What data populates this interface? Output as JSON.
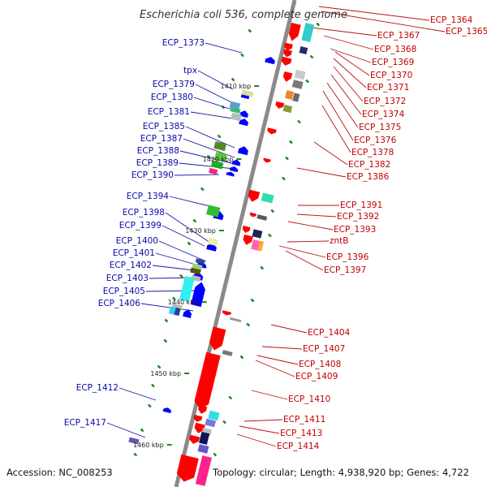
{
  "title": "Escherichia coli 536, complete genome",
  "accession": "Accession: NC_008253",
  "summary": "Topology: circular; Length: 4,938,920 bp; Genes: 4,722",
  "kbp_markers": [
    "1410 kbp",
    "1420 kbp",
    "1430 kbp",
    "1440 kbp",
    "1450 kbp",
    "1460 kbp"
  ],
  "left_genes": [
    "ECP_1373",
    "tpx",
    "ECP_1379",
    "ECP_1380",
    "ECP_1381",
    "ECP_1385",
    "ECP_1387",
    "ECP_1388",
    "ECP_1389",
    "ECP_1390",
    "ECP_1394",
    "ECP_1398",
    "ECP_1399",
    "ECP_1400",
    "ECP_1401",
    "ECP_1402",
    "ECP_1403",
    "ECP_1405",
    "ECP_1406",
    "ECP_1412",
    "ECP_1417"
  ],
  "right_genes": [
    "ECP_1364",
    "ECP_1365",
    "ECP_1367",
    "ECP_1368",
    "ECP_1369",
    "ECP_1370",
    "ECP_1371",
    "ECP_1372",
    "ECP_1374",
    "ECP_1375",
    "ECP_1376",
    "ECP_1378",
    "ECP_1382",
    "ECP_1386",
    "ECP_1391",
    "ECP_1392",
    "ECP_1393",
    "zntB",
    "ECP_1396",
    "ECP_1397",
    "ECP_1404",
    "ECP_1407",
    "ECP_1408",
    "ECP_1409",
    "ECP_1410",
    "ECP_1411",
    "ECP_1413",
    "ECP_1414"
  ],
  "colors": {
    "forward": "#0000ff",
    "reverse": "#ff0000",
    "backbone": "#888888",
    "left_label": "#0a0aa8",
    "right_label": "#c00000",
    "orf": "#1a8a1a"
  }
}
